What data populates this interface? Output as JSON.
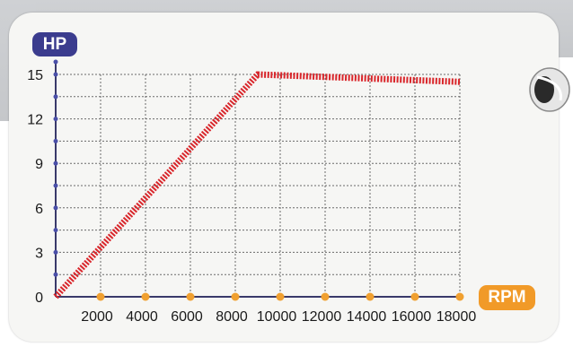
{
  "chart_data": {
    "type": "line",
    "xlabel": "RPM",
    "ylabel": "HP",
    "x_ticks": [
      2000,
      4000,
      6000,
      8000,
      10000,
      12000,
      14000,
      16000,
      18000
    ],
    "y_ticks": [
      0,
      3,
      6,
      9,
      12,
      15
    ],
    "xlim": [
      0,
      18000
    ],
    "ylim": [
      0,
      15
    ],
    "grid": true,
    "series": [
      {
        "x": [
          0,
          9000,
          18000
        ],
        "y": [
          0,
          15,
          14.5
        ],
        "color": "#d9262b",
        "style": "dashed-thick"
      }
    ]
  },
  "colors": {
    "hp_badge": "#3b3c8e",
    "rpm_badge": "#f19a28",
    "x_tick_dot": "#f0a030",
    "y_tick_dot": "#4a4fa8",
    "axis": "#3a3a6a",
    "grid": "#6a6a6a",
    "card": "#f6f6f4"
  },
  "decor": {
    "icon": "engine-part-icon"
  }
}
